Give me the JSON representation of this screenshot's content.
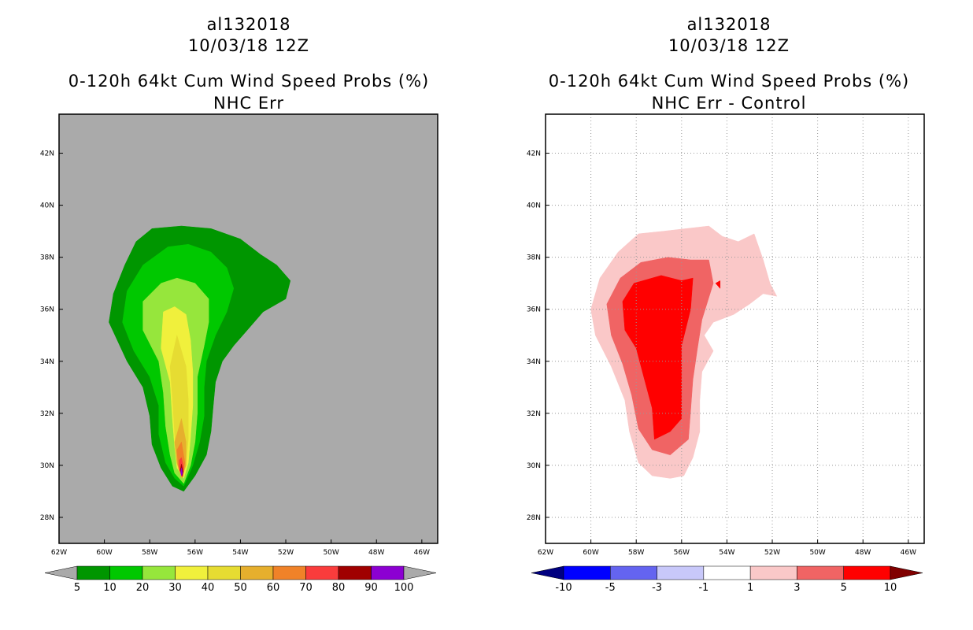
{
  "chart_data": [
    {
      "type": "heatmap",
      "id": "left",
      "title_lines": [
        "al132018",
        "10/03/18 12Z",
        "0-120h 64kt Cum Wind Speed Probs (%)",
        "NHC Err"
      ],
      "background_color": "#aaaaaa",
      "grid": false,
      "x_ticks": [
        "62W",
        "60W",
        "58W",
        "56W",
        "54W",
        "52W",
        "50W",
        "48W",
        "46W"
      ],
      "x_tick_values": [
        -62,
        -60,
        -58,
        -56,
        -54,
        -52,
        -50,
        -48,
        -46
      ],
      "y_ticks": [
        "28N",
        "30N",
        "32N",
        "34N",
        "36N",
        "38N",
        "40N",
        "42N"
      ],
      "y_tick_values": [
        28,
        30,
        32,
        34,
        36,
        38,
        40,
        42
      ],
      "xlim": [
        -62,
        -45.3
      ],
      "ylim": [
        27,
        43.5
      ],
      "colorbar": {
        "labels": [
          "5",
          "10",
          "20",
          "30",
          "40",
          "50",
          "60",
          "70",
          "80",
          "90",
          "100"
        ],
        "colors": [
          "#009600",
          "#00c800",
          "#96e63c",
          "#f0f03c",
          "#e6dc32",
          "#e6af2d",
          "#f08228",
          "#fa3c3c",
          "#a00000",
          "#8c00d2"
        ],
        "under_color": "#aaaaaa",
        "over_color": "#aaaaaa"
      },
      "contours": [
        {
          "level": 5,
          "color": "#009600",
          "points": [
            [
              -57.9,
              39.1
            ],
            [
              -56.6,
              39.2
            ],
            [
              -55.3,
              39.1
            ],
            [
              -54.0,
              38.7
            ],
            [
              -53.1,
              38.1
            ],
            [
              -52.4,
              37.7
            ],
            [
              -51.8,
              37.1
            ],
            [
              -52.0,
              36.4
            ],
            [
              -53.0,
              35.9
            ],
            [
              -53.7,
              35.2
            ],
            [
              -54.3,
              34.6
            ],
            [
              -54.8,
              34.0
            ],
            [
              -55.1,
              33.2
            ],
            [
              -55.2,
              32.3
            ],
            [
              -55.3,
              31.3
            ],
            [
              -55.5,
              30.4
            ],
            [
              -56.0,
              29.6
            ],
            [
              -56.5,
              29.0
            ],
            [
              -57.0,
              29.2
            ],
            [
              -57.5,
              29.9
            ],
            [
              -57.9,
              30.8
            ],
            [
              -58.0,
              31.9
            ],
            [
              -58.3,
              33.0
            ],
            [
              -59.0,
              34.0
            ],
            [
              -59.8,
              35.5
            ],
            [
              -59.6,
              36.6
            ],
            [
              -59.1,
              37.7
            ],
            [
              -58.6,
              38.6
            ]
          ]
        },
        {
          "level": 10,
          "color": "#00c800",
          "points": [
            [
              -57.2,
              38.4
            ],
            [
              -56.3,
              38.5
            ],
            [
              -55.3,
              38.2
            ],
            [
              -54.6,
              37.6
            ],
            [
              -54.3,
              36.8
            ],
            [
              -54.6,
              35.9
            ],
            [
              -55.1,
              35.0
            ],
            [
              -55.5,
              34.0
            ],
            [
              -55.6,
              33.0
            ],
            [
              -55.6,
              31.9
            ],
            [
              -55.8,
              30.9
            ],
            [
              -56.1,
              30.0
            ],
            [
              -56.5,
              29.2
            ],
            [
              -56.9,
              29.5
            ],
            [
              -57.3,
              30.1
            ],
            [
              -57.6,
              31.2
            ],
            [
              -57.6,
              32.3
            ],
            [
              -58.0,
              33.4
            ],
            [
              -58.7,
              34.4
            ],
            [
              -59.2,
              35.5
            ],
            [
              -59.0,
              36.7
            ],
            [
              -58.3,
              37.7
            ]
          ]
        },
        {
          "level": 20,
          "color": "#96e63c",
          "points": [
            [
              -57.5,
              37.0
            ],
            [
              -56.8,
              37.2
            ],
            [
              -56.0,
              37.0
            ],
            [
              -55.4,
              36.4
            ],
            [
              -55.4,
              35.5
            ],
            [
              -55.6,
              34.6
            ],
            [
              -55.9,
              33.4
            ],
            [
              -55.9,
              32.0
            ],
            [
              -56.0,
              30.9
            ],
            [
              -56.2,
              30.0
            ],
            [
              -56.5,
              29.3
            ],
            [
              -56.9,
              29.7
            ],
            [
              -57.1,
              30.4
            ],
            [
              -57.3,
              31.5
            ],
            [
              -57.4,
              32.8
            ],
            [
              -57.6,
              34.0
            ],
            [
              -58.3,
              35.2
            ],
            [
              -58.3,
              36.3
            ]
          ]
        },
        {
          "level": 30,
          "color": "#f0f03c",
          "points": [
            [
              -57.4,
              35.9
            ],
            [
              -56.9,
              36.1
            ],
            [
              -56.4,
              35.8
            ],
            [
              -56.2,
              34.8
            ],
            [
              -56.1,
              33.6
            ],
            [
              -56.1,
              32.3
            ],
            [
              -56.2,
              31.1
            ],
            [
              -56.3,
              30.1
            ],
            [
              -56.5,
              29.5
            ],
            [
              -56.8,
              29.9
            ],
            [
              -56.9,
              30.7
            ],
            [
              -57.0,
              31.8
            ],
            [
              -57.1,
              33.2
            ],
            [
              -57.5,
              34.5
            ]
          ]
        },
        {
          "level": 40,
          "color": "#e6dc32",
          "points": [
            [
              -56.8,
              35.0
            ],
            [
              -56.4,
              33.8
            ],
            [
              -56.3,
              32.5
            ],
            [
              -56.3,
              31.0
            ],
            [
              -56.4,
              30.1
            ],
            [
              -56.6,
              29.6
            ],
            [
              -56.8,
              30.1
            ],
            [
              -56.9,
              31.2
            ],
            [
              -57.0,
              32.6
            ],
            [
              -57.1,
              33.8
            ]
          ]
        },
        {
          "level": 50,
          "color": "#e6af2d",
          "points": [
            [
              -56.6,
              31.8
            ],
            [
              -56.4,
              30.9
            ],
            [
              -56.4,
              30.0
            ],
            [
              -56.6,
              29.5
            ],
            [
              -56.8,
              30.1
            ],
            [
              -56.9,
              30.9
            ]
          ]
        },
        {
          "level": 60,
          "color": "#f08228",
          "points": [
            [
              -56.6,
              30.9
            ],
            [
              -56.45,
              30.1
            ],
            [
              -56.55,
              29.55
            ],
            [
              -56.75,
              30.0
            ],
            [
              -56.8,
              30.6
            ]
          ]
        },
        {
          "level": 70,
          "color": "#fa3c3c",
          "points": [
            [
              -56.6,
              30.3
            ],
            [
              -56.5,
              29.9
            ],
            [
              -56.55,
              29.55
            ],
            [
              -56.7,
              29.85
            ],
            [
              -56.7,
              30.2
            ]
          ]
        },
        {
          "level": 80,
          "color": "#a00000",
          "points": [
            [
              -56.6,
              30.05
            ],
            [
              -56.52,
              29.75
            ],
            [
              -56.58,
              29.58
            ],
            [
              -56.66,
              29.8
            ]
          ]
        },
        {
          "level": 90,
          "color": "#8c00d2",
          "points": [
            [
              -56.6,
              29.9
            ],
            [
              -56.55,
              29.7
            ],
            [
              -56.6,
              29.6
            ],
            [
              -56.64,
              29.75
            ]
          ]
        }
      ]
    },
    {
      "type": "heatmap",
      "id": "right",
      "title_lines": [
        "al132018",
        "10/03/18 12Z",
        "0-120h 64kt Cum Wind Speed Probs (%)",
        "NHC Err - Control"
      ],
      "background_color": "#ffffff",
      "grid": true,
      "x_ticks": [
        "62W",
        "60W",
        "58W",
        "56W",
        "54W",
        "52W",
        "50W",
        "48W",
        "46W"
      ],
      "x_tick_values": [
        -62,
        -60,
        -58,
        -56,
        -54,
        -52,
        -50,
        -48,
        -46
      ],
      "y_ticks": [
        "28N",
        "30N",
        "32N",
        "34N",
        "36N",
        "38N",
        "40N",
        "42N"
      ],
      "y_tick_values": [
        28,
        30,
        32,
        34,
        36,
        38,
        40,
        42
      ],
      "xlim": [
        -62,
        -45.3
      ],
      "ylim": [
        27,
        43.5
      ],
      "colorbar": {
        "labels": [
          "-10",
          "-5",
          "-3",
          "-1",
          "1",
          "3",
          "5",
          "10"
        ],
        "colors": [
          "#0000ff",
          "#6464f0",
          "#c8c8fa",
          "#ffffff",
          "#fac8c8",
          "#f06464",
          "#ff0000"
        ],
        "under_color": "#000080",
        "over_color": "#800000"
      },
      "contours": [
        {
          "level": 1,
          "color": "#fac8c8",
          "points": [
            [
              -57.9,
              38.9
            ],
            [
              -56.8,
              39.0
            ],
            [
              -55.8,
              39.1
            ],
            [
              -54.8,
              39.2
            ],
            [
              -54.2,
              38.8
            ],
            [
              -53.5,
              38.6
            ],
            [
              -52.8,
              38.9
            ],
            [
              -52.4,
              37.9
            ],
            [
              -52.1,
              37.0
            ],
            [
              -51.8,
              36.5
            ],
            [
              -52.4,
              36.6
            ],
            [
              -53.0,
              36.2
            ],
            [
              -53.7,
              35.8
            ],
            [
              -54.6,
              35.5
            ],
            [
              -55.0,
              35.0
            ],
            [
              -54.6,
              34.4
            ],
            [
              -55.1,
              33.6
            ],
            [
              -55.2,
              32.5
            ],
            [
              -55.2,
              31.3
            ],
            [
              -55.5,
              30.3
            ],
            [
              -55.9,
              29.6
            ],
            [
              -56.5,
              29.5
            ],
            [
              -57.3,
              29.6
            ],
            [
              -57.9,
              30.1
            ],
            [
              -58.3,
              31.3
            ],
            [
              -58.5,
              32.5
            ],
            [
              -59.1,
              33.8
            ],
            [
              -59.8,
              35.0
            ],
            [
              -60.0,
              36.0
            ],
            [
              -59.6,
              37.2
            ],
            [
              -58.8,
              38.2
            ]
          ]
        },
        {
          "level": 3,
          "color": "#f06464",
          "points": [
            [
              -57.8,
              37.8
            ],
            [
              -56.6,
              38.0
            ],
            [
              -55.6,
              37.9
            ],
            [
              -54.8,
              37.9
            ],
            [
              -54.6,
              37.0
            ],
            [
              -55.1,
              35.6
            ],
            [
              -55.3,
              34.5
            ],
            [
              -55.5,
              33.3
            ],
            [
              -55.6,
              32.1
            ],
            [
              -55.7,
              31.0
            ],
            [
              -56.5,
              30.4
            ],
            [
              -57.3,
              30.6
            ],
            [
              -57.9,
              31.4
            ],
            [
              -58.2,
              32.7
            ],
            [
              -58.6,
              33.9
            ],
            [
              -59.1,
              35.0
            ],
            [
              -59.3,
              36.2
            ],
            [
              -58.7,
              37.2
            ]
          ]
        },
        {
          "level": 5,
          "color": "#ff0000",
          "points": [
            [
              -58.1,
              37.0
            ],
            [
              -56.9,
              37.3
            ],
            [
              -56.0,
              37.1
            ],
            [
              -55.5,
              37.2
            ],
            [
              -55.6,
              36.0
            ],
            [
              -56.0,
              34.6
            ],
            [
              -56.0,
              33.1
            ],
            [
              -56.0,
              31.8
            ],
            [
              -56.5,
              31.3
            ],
            [
              -57.2,
              31.0
            ],
            [
              -57.3,
              32.2
            ],
            [
              -57.7,
              33.5
            ],
            [
              -58.0,
              34.5
            ],
            [
              -58.5,
              35.2
            ],
            [
              -58.6,
              36.3
            ]
          ]
        },
        {
          "level": 5,
          "color": "#ff0000",
          "points": [
            [
              -54.5,
              37.0
            ],
            [
              -54.3,
              37.1
            ],
            [
              -54.3,
              36.8
            ]
          ]
        }
      ]
    }
  ]
}
